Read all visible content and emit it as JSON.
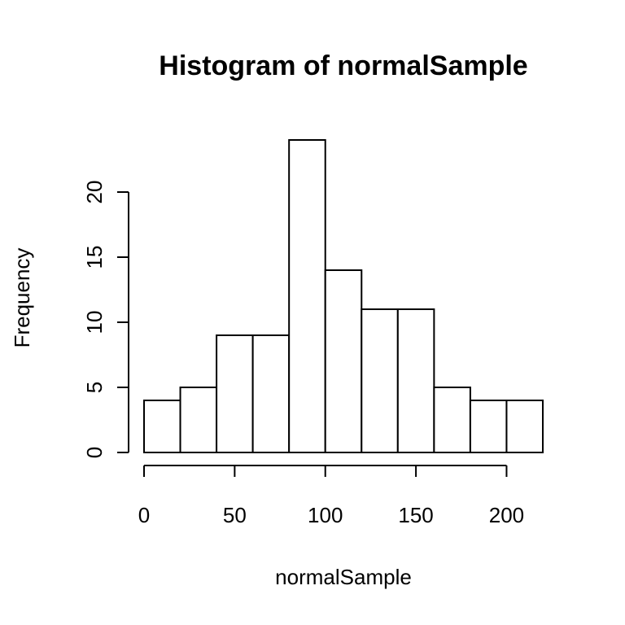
{
  "chart_data": {
    "type": "bar",
    "title": "Histogram of normalSample",
    "xlabel": "normalSample",
    "ylabel": "Frequency",
    "bins": [
      {
        "start": 0,
        "end": 20,
        "count": 4
      },
      {
        "start": 20,
        "end": 40,
        "count": 5
      },
      {
        "start": 40,
        "end": 60,
        "count": 9
      },
      {
        "start": 60,
        "end": 80,
        "count": 9
      },
      {
        "start": 80,
        "end": 100,
        "count": 24
      },
      {
        "start": 100,
        "end": 120,
        "count": 14
      },
      {
        "start": 120,
        "end": 140,
        "count": 11
      },
      {
        "start": 140,
        "end": 160,
        "count": 11
      },
      {
        "start": 160,
        "end": 180,
        "count": 5
      },
      {
        "start": 180,
        "end": 200,
        "count": 4
      },
      {
        "start": 200,
        "end": 220,
        "count": 4
      }
    ],
    "xticks": [
      "0",
      "50",
      "100",
      "150",
      "200"
    ],
    "yticks": [
      "0",
      "5",
      "10",
      "15",
      "20"
    ],
    "xlim": [
      0,
      220
    ],
    "ylim": [
      0,
      24
    ],
    "grid": false,
    "colors": {
      "bar_fill": "#ffffff",
      "bar_stroke": "#000000"
    }
  }
}
